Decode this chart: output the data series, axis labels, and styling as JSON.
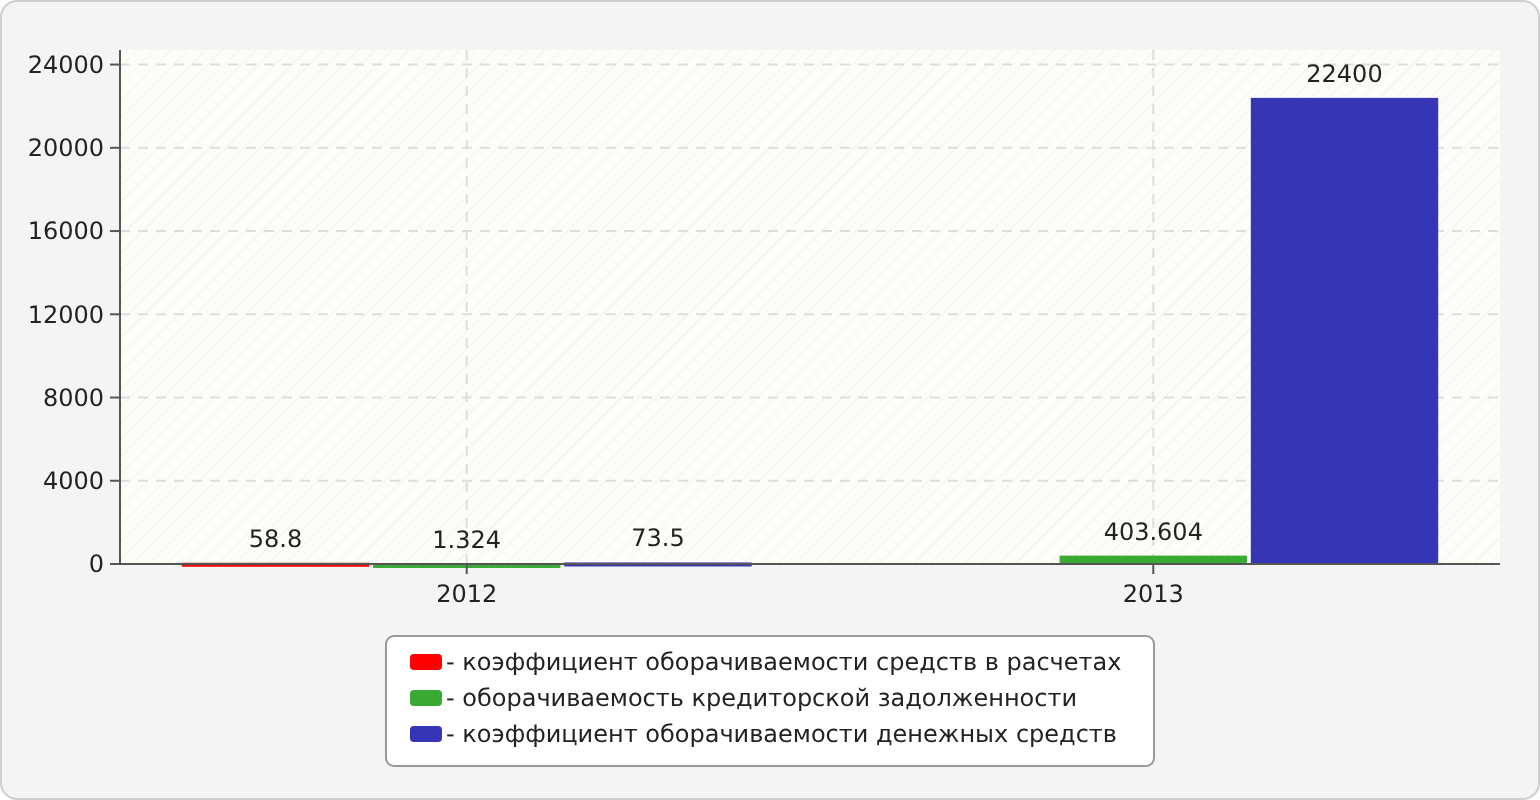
{
  "chart_data": {
    "type": "bar",
    "categories": [
      "2012",
      "2013"
    ],
    "series": [
      {
        "name": "- коэффициент оборачиваемости средств в расчетах",
        "color": "#ff0000",
        "values": [
          58.8,
          null
        ]
      },
      {
        "name": "- оборачиваемость кредиторской задолженности",
        "color": "#3aaa35",
        "values": [
          1.324,
          403.604
        ]
      },
      {
        "name": "- коэффициент оборачиваемости денежных средств",
        "color": "#3535b5",
        "values": [
          73.5,
          22400
        ]
      }
    ],
    "ylim": [
      0,
      24700
    ],
    "yticks": [
      0,
      4000,
      8000,
      12000,
      16000,
      20000,
      24000
    ],
    "grid": true,
    "legend": "bottom",
    "data_labels": true
  }
}
